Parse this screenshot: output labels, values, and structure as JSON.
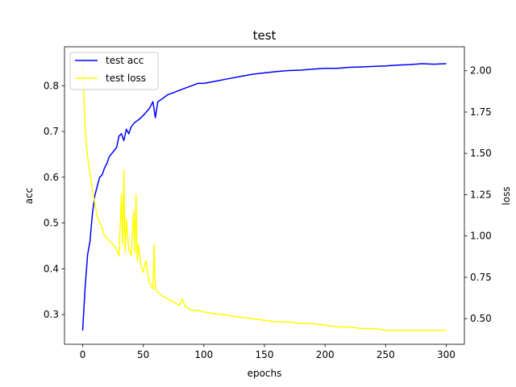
{
  "chart_data": {
    "type": "line",
    "title": "test",
    "xlabel": "epochs",
    "ylabel": "acc",
    "ylabel_right": "loss",
    "xlim": [
      -15,
      315
    ],
    "ylim": [
      0.235,
      0.885
    ],
    "ylim_right": [
      0.345,
      2.145
    ],
    "x_ticks": [
      0,
      50,
      100,
      150,
      200,
      250,
      300
    ],
    "y_ticks": [
      0.3,
      0.4,
      0.5,
      0.6,
      0.7,
      0.8
    ],
    "y_tick_labels": [
      "0.3",
      "0.4",
      "0.5",
      "0.6",
      "0.7",
      "0.8"
    ],
    "y_right_ticks": [
      0.5,
      0.75,
      1.0,
      1.25,
      1.5,
      1.75,
      2.0
    ],
    "y_right_tick_labels": [
      "0.50",
      "0.75",
      "1.00",
      "1.25",
      "1.50",
      "1.75",
      "2.00"
    ],
    "grid": false,
    "legend_position": "top-left",
    "series": [
      {
        "name": "test acc",
        "axis": "left",
        "color": "#0000ff",
        "x": [
          0,
          2,
          4,
          6,
          8,
          10,
          12,
          14,
          16,
          18,
          20,
          22,
          25,
          28,
          30,
          32,
          34,
          36,
          38,
          40,
          43,
          46,
          50,
          55,
          58,
          60,
          62,
          65,
          70,
          75,
          80,
          85,
          90,
          95,
          100,
          110,
          120,
          130,
          140,
          150,
          160,
          170,
          180,
          190,
          200,
          210,
          220,
          230,
          240,
          250,
          260,
          270,
          280,
          290,
          300
        ],
        "y": [
          0.265,
          0.36,
          0.43,
          0.46,
          0.52,
          0.56,
          0.58,
          0.6,
          0.605,
          0.62,
          0.63,
          0.645,
          0.655,
          0.665,
          0.69,
          0.695,
          0.68,
          0.705,
          0.695,
          0.71,
          0.72,
          0.725,
          0.735,
          0.75,
          0.765,
          0.73,
          0.765,
          0.77,
          0.78,
          0.785,
          0.79,
          0.795,
          0.8,
          0.805,
          0.805,
          0.81,
          0.815,
          0.82,
          0.825,
          0.828,
          0.831,
          0.833,
          0.834,
          0.836,
          0.838,
          0.838,
          0.84,
          0.841,
          0.842,
          0.843,
          0.845,
          0.846,
          0.848,
          0.847,
          0.848
        ]
      },
      {
        "name": "test loss",
        "axis": "right",
        "color": "#ffff00",
        "x": [
          0,
          1,
          2,
          3,
          4,
          6,
          8,
          10,
          12,
          14,
          16,
          18,
          20,
          22,
          25,
          28,
          30,
          32,
          33,
          34,
          35,
          36,
          38,
          40,
          42,
          43,
          44,
          45,
          46,
          48,
          50,
          52,
          55,
          58,
          59,
          60,
          62,
          65,
          70,
          75,
          80,
          82,
          85,
          88,
          90,
          95,
          100,
          110,
          120,
          130,
          140,
          150,
          160,
          170,
          180,
          190,
          200,
          210,
          220,
          230,
          240,
          250,
          260,
          270,
          280,
          290,
          300
        ],
        "y": [
          2.1,
          1.85,
          1.65,
          1.55,
          1.48,
          1.38,
          1.28,
          1.2,
          1.12,
          1.08,
          1.05,
          1.0,
          0.99,
          0.97,
          0.95,
          0.92,
          0.88,
          1.25,
          0.95,
          1.4,
          0.9,
          1.1,
          0.92,
          0.88,
          1.15,
          0.9,
          1.25,
          0.85,
          0.95,
          0.82,
          0.78,
          0.85,
          0.72,
          0.68,
          0.95,
          0.68,
          0.66,
          0.64,
          0.62,
          0.6,
          0.58,
          0.62,
          0.57,
          0.56,
          0.55,
          0.55,
          0.54,
          0.53,
          0.52,
          0.51,
          0.5,
          0.49,
          0.48,
          0.48,
          0.47,
          0.47,
          0.46,
          0.45,
          0.45,
          0.44,
          0.44,
          0.43,
          0.43,
          0.43,
          0.43,
          0.43,
          0.43
        ]
      }
    ]
  }
}
